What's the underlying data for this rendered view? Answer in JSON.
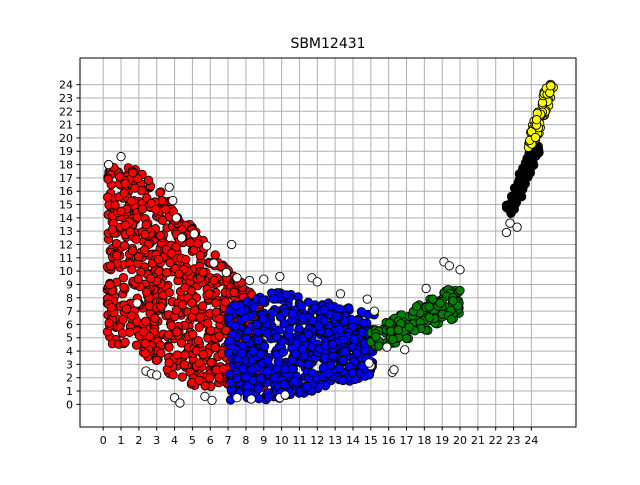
{
  "chart_data": {
    "type": "scatter",
    "title": "SBM12431",
    "xlabel": "",
    "ylabel": "",
    "xlim": [
      -1.3,
      26.5
    ],
    "ylim": [
      -1.7,
      26.0
    ],
    "x_ticks": [
      0,
      1,
      2,
      3,
      4,
      5,
      6,
      7,
      8,
      9,
      10,
      11,
      12,
      13,
      14,
      15,
      16,
      17,
      18,
      19,
      20,
      21,
      22,
      23,
      24
    ],
    "y_ticks": [
      0,
      1,
      2,
      3,
      4,
      5,
      6,
      7,
      8,
      9,
      10,
      11,
      12,
      13,
      14,
      15,
      16,
      17,
      18,
      19,
      20,
      21,
      22,
      23,
      24
    ],
    "grid": true,
    "legend": "none",
    "clusters": [
      {
        "color": "#ff0000",
        "x_range": [
          0.2,
          9.0
        ],
        "y_range": [
          1.3,
          17.8
        ],
        "shape": "band"
      },
      {
        "color": "#0000ff",
        "x_range": [
          7.0,
          15.2
        ],
        "y_range": [
          -0.1,
          8.8
        ],
        "shape": "band"
      },
      {
        "color": "#008000",
        "x_range": [
          15.0,
          20.0
        ],
        "y_range": [
          4.3,
          9.0
        ],
        "shape": "band"
      },
      {
        "color": "#000000",
        "x_range": [
          22.8,
          24.3
        ],
        "y_range": [
          14.5,
          19.5
        ],
        "shape": "diagonal"
      },
      {
        "color": "#ffff00",
        "x_range": [
          24.0,
          25.0
        ],
        "y_range": [
          19.5,
          23.9
        ],
        "shape": "diagonal"
      }
    ],
    "outliers": [
      [
        1,
        18.6
      ],
      [
        0.3,
        18.0
      ],
      [
        3.7,
        16.3
      ],
      [
        3.9,
        15.3
      ],
      [
        4.1,
        14.0
      ],
      [
        4.4,
        12.5
      ],
      [
        5.1,
        12.8
      ],
      [
        5.8,
        11.9
      ],
      [
        7.2,
        12.0
      ],
      [
        6.2,
        10.6
      ],
      [
        6.9,
        9.9
      ],
      [
        7.5,
        9.5
      ],
      [
        8.2,
        9.3
      ],
      [
        9.0,
        9.4
      ],
      [
        9.9,
        9.6
      ],
      [
        11.7,
        9.5
      ],
      [
        12.0,
        9.2
      ],
      [
        13.3,
        8.3
      ],
      [
        14.8,
        7.9
      ],
      [
        15.2,
        7.0
      ],
      [
        4.0,
        0.5
      ],
      [
        4.3,
        0.1
      ],
      [
        5.7,
        0.6
      ],
      [
        6.1,
        0.3
      ],
      [
        7.5,
        0.5
      ],
      [
        8.3,
        0.4
      ],
      [
        2.4,
        2.5
      ],
      [
        2.7,
        2.3
      ],
      [
        3.0,
        2.2
      ],
      [
        16.2,
        2.4
      ],
      [
        16.3,
        2.6
      ],
      [
        18.1,
        8.7
      ],
      [
        19.1,
        10.7
      ],
      [
        19.4,
        10.4
      ],
      [
        20.0,
        10.1
      ],
      [
        22.6,
        12.9
      ],
      [
        22.8,
        13.6
      ],
      [
        23.2,
        13.3
      ],
      [
        16.9,
        4.1
      ],
      [
        15.9,
        4.3
      ],
      [
        15.0,
        2.9
      ],
      [
        14.9,
        3.1
      ],
      [
        1.9,
        7.6
      ],
      [
        9.9,
        0.5
      ],
      [
        10.2,
        0.7
      ]
    ]
  }
}
